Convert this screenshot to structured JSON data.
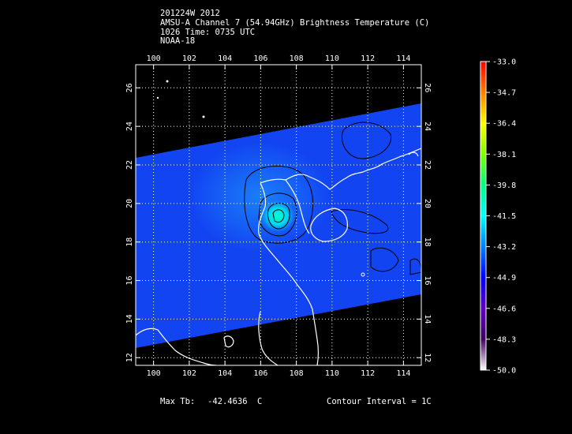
{
  "header": {
    "line1": "201224W 2012",
    "line2": "AMSU-A Channel 7 (54.94GHz) Brightness Temperature (C)",
    "line3": "1026 Time: 0735 UTC",
    "line4": "NOAA-18"
  },
  "map": {
    "lon_range": [
      99,
      115
    ],
    "lat_range": [
      11.6,
      27.2
    ],
    "lon_ticks": [
      "100",
      "102",
      "104",
      "106",
      "108",
      "110",
      "112",
      "114"
    ],
    "lat_ticks": [
      "12",
      "14",
      "16",
      "18",
      "20",
      "22",
      "24",
      "26"
    ],
    "grid_lines": "dotted",
    "storm_center": {
      "lon": 106.9,
      "lat": 19.6
    }
  },
  "colorbar": {
    "labels": [
      "-33.0",
      "-34.7",
      "-36.4",
      "-38.1",
      "-39.8",
      "-41.5",
      "-43.2",
      "-44.9",
      "-46.6",
      "-48.3",
      "-50.0"
    ],
    "colors_top_to_bottom": [
      "#ff0000",
      "#ff8000",
      "#ffff00",
      "#80ff00",
      "#00ff80",
      "#00ffff",
      "#0080ff",
      "#0000ff",
      "#6000c0",
      "#400060",
      "#ffffff"
    ]
  },
  "footer": {
    "max_tb_label": "Max Tb:",
    "max_tb_value": "-42.4636",
    "max_tb_unit": "C",
    "contour": "Contour Interval = 1C"
  }
}
